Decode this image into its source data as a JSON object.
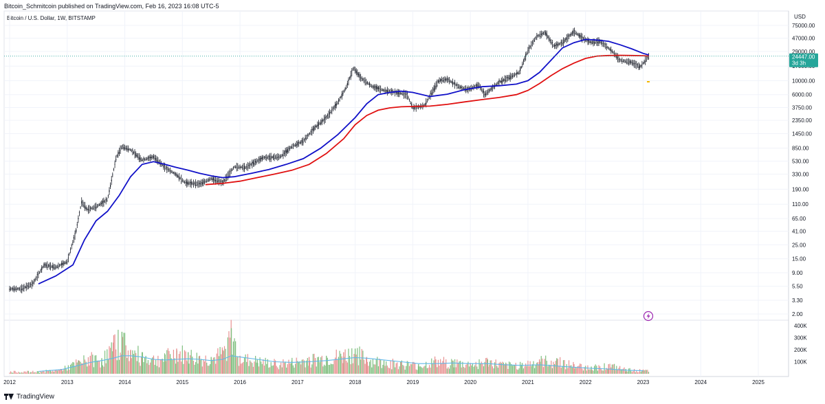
{
  "header": {
    "publisher": "Bitcoin_Schmitcoin",
    "published_text": "published on TradingView.com, Feb 16, 2023 16:08 UTC-5"
  },
  "symbol": {
    "description": "Bitcoin / U.S. Dollar, 1W, BITSTAMP"
  },
  "footer": {
    "brand": "TradingView"
  },
  "colors": {
    "ma_short": "#1010c8",
    "ma_long": "#e01010",
    "volume_avg": "#5fb8e8",
    "volume_up": "#7fbf7f",
    "volume_down": "#e89090",
    "price_badge": "#26a69a",
    "candles": "#131722",
    "price_line": "#26a69a",
    "grid": "#f0f3fa"
  },
  "icons": {
    "lightning": "lightning-icon",
    "tv_logo": "tradingview-logo-icon"
  },
  "chart_data": {
    "type": "line",
    "scale": "log",
    "currency": "USD",
    "x_ticks": [
      "2012",
      "2013",
      "2014",
      "2015",
      "2016",
      "2017",
      "2018",
      "2019",
      "2020",
      "2021",
      "2022",
      "2023",
      "2024",
      "2025"
    ],
    "y_ticks": [
      "75000.00",
      "47000.00",
      "29000.00",
      "17000.00",
      "10000.00",
      "6000.00",
      "3750.00",
      "2350.00",
      "1450.00",
      "850.00",
      "530.00",
      "330.00",
      "190.00",
      "110.00",
      "65.00",
      "41.00",
      "25.00",
      "15.00",
      "9.00",
      "5.50",
      "3.30",
      "2.00"
    ],
    "y_tick_values": [
      75000,
      47000,
      29000,
      17000,
      10000,
      6000,
      3750,
      2350,
      1450,
      850,
      530,
      330,
      190,
      110,
      65,
      41,
      25,
      15,
      9,
      5.5,
      3.3,
      2
    ],
    "last_price": "24447.00",
    "last_price_value": 24447,
    "countdown": "3d 3h",
    "price": {
      "x": [
        2012.0,
        2012.2,
        2012.4,
        2012.6,
        2012.8,
        2013.0,
        2013.15,
        2013.25,
        2013.35,
        2013.5,
        2013.7,
        2013.85,
        2013.95,
        2014.1,
        2014.3,
        2014.5,
        2014.7,
        2014.9,
        2015.05,
        2015.3,
        2015.5,
        2015.7,
        2015.9,
        2016.1,
        2016.4,
        2016.7,
        2016.9,
        2017.1,
        2017.3,
        2017.5,
        2017.7,
        2017.85,
        2017.97,
        2018.1,
        2018.3,
        2018.5,
        2018.7,
        2018.9,
        2019.0,
        2019.2,
        2019.45,
        2019.6,
        2019.8,
        2019.95,
        2020.15,
        2020.25,
        2020.5,
        2020.7,
        2020.85,
        2021.0,
        2021.15,
        2021.3,
        2021.45,
        2021.6,
        2021.8,
        2021.95,
        2022.1,
        2022.25,
        2022.45,
        2022.6,
        2022.8,
        2022.95,
        2023.1
      ],
      "y": [
        5.0,
        5.0,
        6.0,
        12.0,
        11.0,
        13.5,
        40.0,
        120.0,
        90.0,
        100.0,
        130.0,
        600.0,
        900.0,
        800.0,
        550.0,
        620.0,
        420.0,
        320.0,
        240.0,
        230.0,
        280.0,
        240.0,
        430.0,
        420.0,
        600.0,
        620.0,
        900.0,
        1100.0,
        1800.0,
        2600.0,
        4500.0,
        8000.0,
        16000.0,
        11000.0,
        8000.0,
        7000.0,
        6500.0,
        6000.0,
        3700.0,
        4000.0,
        10000.0,
        10500.0,
        8000.0,
        7200.0,
        8500.0,
        6000.0,
        9500.0,
        11500.0,
        13500.0,
        30000.0,
        50000.0,
        58000.0,
        35000.0,
        40000.0,
        60000.0,
        47000.0,
        40000.0,
        42000.0,
        30000.0,
        21000.0,
        19500.0,
        16500.0,
        24447.0
      ]
    },
    "series": [
      {
        "x": [
          2012.5,
          2012.8,
          2013.1,
          2013.3,
          2013.5,
          2013.7,
          2013.9,
          2014.1,
          2014.3,
          2014.5,
          2014.7,
          2014.9,
          2015.1,
          2015.3,
          2015.5,
          2015.7,
          2015.9,
          2016.2,
          2016.5,
          2016.8,
          2017.1,
          2017.4,
          2017.7,
          2018.0,
          2018.2,
          2018.4,
          2018.6,
          2018.8,
          2019.0,
          2019.3,
          2019.6,
          2019.9,
          2020.2,
          2020.5,
          2020.8,
          2021.0,
          2021.2,
          2021.4,
          2021.6,
          2021.8,
          2022.0,
          2022.2,
          2022.4,
          2022.6,
          2022.8,
          2023.0,
          2023.1
        ],
        "y": [
          6.0,
          8.0,
          12.0,
          30.0,
          60.0,
          85.0,
          150.0,
          300.0,
          470.0,
          520.0,
          470.0,
          420.0,
          380.0,
          340.0,
          310.0,
          290.0,
          300.0,
          340.0,
          390.0,
          470.0,
          580.0,
          850.0,
          1400.0,
          2600.0,
          4300.0,
          6000.0,
          6500.0,
          6800.0,
          6500.0,
          5600.0,
          6100.0,
          7200.0,
          8000.0,
          8300.0,
          8800.0,
          10000.0,
          13500.0,
          21000.0,
          33000.0,
          40000.0,
          45000.0,
          44000.0,
          42000.0,
          37000.0,
          32000.0,
          27000.0,
          25500.0
        ]
      },
      {
        "x": [
          2015.4,
          2015.7,
          2016.0,
          2016.3,
          2016.6,
          2016.9,
          2017.2,
          2017.5,
          2017.8,
          2018.0,
          2018.2,
          2018.4,
          2018.6,
          2018.8,
          2019.0,
          2019.3,
          2019.6,
          2019.9,
          2020.2,
          2020.5,
          2020.8,
          2021.0,
          2021.2,
          2021.4,
          2021.6,
          2021.8,
          2022.0,
          2022.2,
          2022.4,
          2022.6,
          2022.8,
          2023.0,
          2023.1
        ],
        "y": [
          225.0,
          235.0,
          255.0,
          290.0,
          330.0,
          380.0,
          470.0,
          700.0,
          1200.0,
          2000.0,
          2800.0,
          3400.0,
          3700.0,
          3850.0,
          3900.0,
          3950.0,
          4200.0,
          4600.0,
          5000.0,
          5400.0,
          6000.0,
          7000.0,
          9000.0,
          12000.0,
          15500.0,
          19000.0,
          22500.0,
          24500.0,
          25000.0,
          25200.0,
          25000.0,
          24800.0,
          24600.0
        ]
      }
    ],
    "volume": {
      "y_ticks": [
        "400K",
        "300K",
        "200K",
        "100K"
      ],
      "y_tick_values": [
        400000,
        300000,
        200000,
        100000
      ],
      "x": [
        2012.5,
        2012.9,
        2013.2,
        2013.4,
        2013.6,
        2013.8,
        2013.95,
        2014.1,
        2014.3,
        2014.5,
        2014.7,
        2014.9,
        2015.1,
        2015.3,
        2015.5,
        2015.7,
        2015.85,
        2016.0,
        2016.3,
        2016.6,
        2016.9,
        2017.2,
        2017.5,
        2017.8,
        2018.0,
        2018.2,
        2018.5,
        2018.8,
        2019.1,
        2019.4,
        2019.7,
        2020.0,
        2020.3,
        2020.6,
        2020.9,
        2021.2,
        2021.5,
        2021.8,
        2022.1,
        2022.4,
        2022.7,
        2023.0
      ],
      "values": [
        20000,
        40000,
        110000,
        150000,
        130000,
        260000,
        350000,
        200000,
        180000,
        140000,
        160000,
        210000,
        180000,
        150000,
        140000,
        200000,
        380000,
        150000,
        120000,
        100000,
        110000,
        140000,
        150000,
        180000,
        210000,
        140000,
        110000,
        100000,
        80000,
        120000,
        110000,
        90000,
        120000,
        80000,
        90000,
        120000,
        130000,
        80000,
        60000,
        80000,
        40000,
        30000
      ],
      "avg": [
        20000,
        35000,
        70000,
        95000,
        110000,
        130000,
        150000,
        150000,
        140000,
        120000,
        115000,
        120000,
        125000,
        120000,
        110000,
        120000,
        150000,
        140000,
        120000,
        100000,
        95000,
        100000,
        110000,
        125000,
        135000,
        130000,
        115000,
        100000,
        85000,
        85000,
        90000,
        85000,
        85000,
        75000,
        70000,
        75000,
        65000,
        55000,
        45000,
        40000,
        30000,
        25000
      ]
    }
  }
}
